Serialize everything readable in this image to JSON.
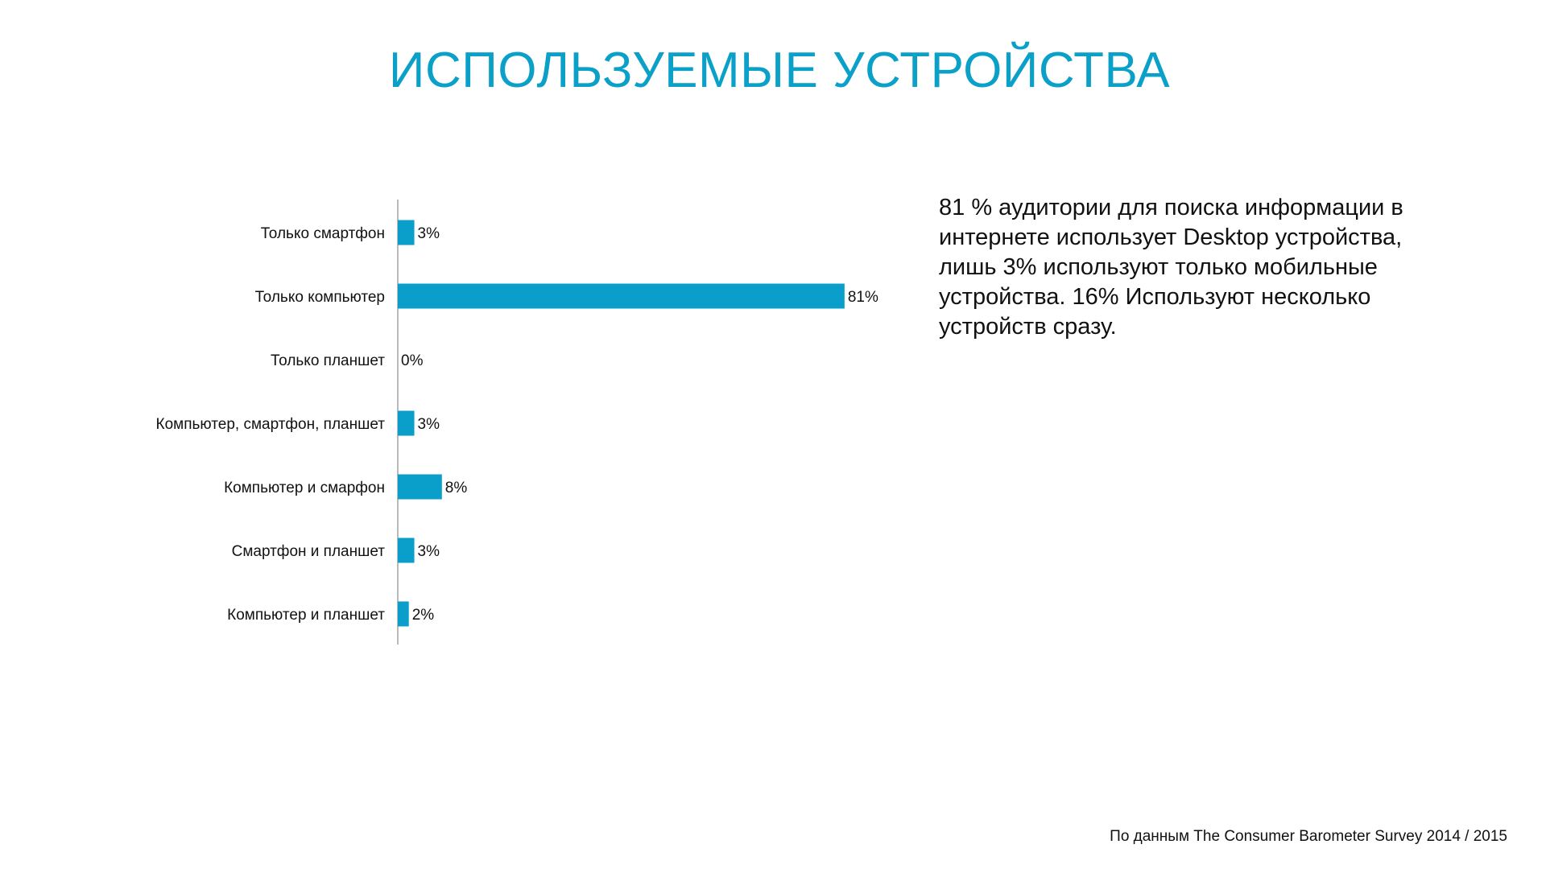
{
  "slide": {
    "title": "ИСПОЛЬЗУЕМЫЕ УСТРОЙСТВА",
    "summary": "81 % аудитории для поиска информации в интернете использует Desktop устройства, лишь 3% используют только мобильные устройства. 16% Используют несколько устройств сразу.",
    "source": "По данным The Consumer Barometer Survey 2014 / 2015"
  },
  "colors": {
    "title": "#0aa0c8",
    "bar": "#0a9fcb",
    "axis": "#8c8c8c",
    "text": "#111111"
  },
  "chart_data": {
    "type": "bar",
    "orientation": "horizontal",
    "categories": [
      "Только смартфон",
      "Только компьютер",
      "Только планшет",
      "Компьютер, смартфон, планшет",
      "Компьютер и смарфон",
      "Смартфон и планшет",
      "Компьютер и планшет"
    ],
    "values": [
      3,
      81,
      0,
      3,
      8,
      3,
      2
    ],
    "value_labels": [
      "3%",
      "81%",
      "0%",
      "3%",
      "8%",
      "3%",
      "2%"
    ],
    "unit": "%",
    "xlim": [
      0,
      100
    ],
    "grid": false,
    "legend": "none"
  }
}
